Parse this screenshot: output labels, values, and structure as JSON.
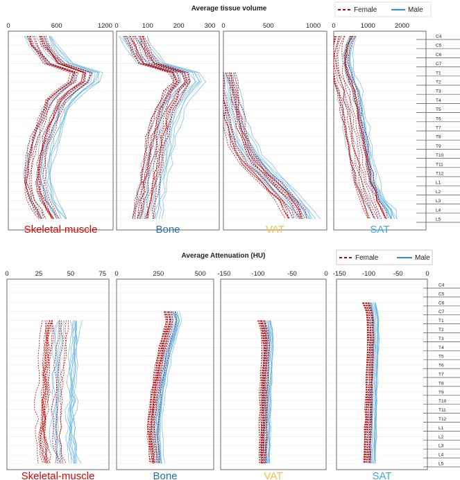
{
  "legend": {
    "female": "Female",
    "male": "Male"
  },
  "colors": {
    "female": "#c00000",
    "male": "#5aaee0",
    "muscle": "#e00000",
    "bone": "#1f6fb2",
    "vat": "#f0c040",
    "sat": "#3ba9e0"
  },
  "vertebrae": [
    "C4",
    "C5",
    "C6",
    "C7",
    "T1",
    "T2",
    "T3",
    "T4",
    "T5",
    "T6",
    "T7",
    "T8",
    "T9",
    "T10",
    "T11",
    "T12",
    "L1",
    "L2",
    "L3",
    "L4",
    "L5"
  ],
  "chart_data": [
    {
      "type": "line",
      "title": "Average tissue volume",
      "panels": [
        {
          "label": "Skeletal-muscle",
          "xlim": [
            0,
            1300
          ],
          "ticks": [
            "0",
            "600",
            "1200"
          ],
          "tick_values": [
            0,
            600,
            1200
          ],
          "female_profile": [
            350,
            400,
            480,
            580,
            900,
            880,
            720,
            600,
            540,
            500,
            460,
            420,
            380,
            360,
            340,
            330,
            320,
            340,
            380,
            440,
            500
          ],
          "female_spread": 140,
          "male_profile": [
            380,
            440,
            520,
            640,
            980,
            960,
            800,
            680,
            600,
            560,
            510,
            470,
            430,
            400,
            380,
            370,
            370,
            390,
            430,
            500,
            570
          ],
          "male_spread": 170
        },
        {
          "label": "Bone",
          "xlim": [
            0,
            330
          ],
          "ticks": [
            "0",
            "100",
            "200",
            "300"
          ],
          "tick_values": [
            0,
            100,
            200,
            300
          ],
          "female_profile": [
            55,
            65,
            80,
            100,
            195,
            205,
            180,
            165,
            150,
            140,
            135,
            125,
            120,
            115,
            110,
            105,
            100,
            95,
            90,
            85,
            80
          ],
          "female_spread": 40,
          "male_profile": [
            60,
            72,
            90,
            115,
            225,
            240,
            210,
            190,
            175,
            165,
            158,
            150,
            145,
            138,
            132,
            127,
            122,
            117,
            112,
            107,
            100
          ],
          "male_spread": 50
        },
        {
          "label": "VAT",
          "xlim": [
            0,
            1150
          ],
          "ticks": [
            "0",
            "500",
            "1000"
          ],
          "tick_values": [
            0,
            500,
            1000
          ],
          "female_profile": [
            null,
            null,
            null,
            null,
            0,
            20,
            40,
            60,
            80,
            100,
            120,
            150,
            180,
            230,
            300,
            400,
            500,
            600,
            700,
            760,
            800
          ],
          "female_spread": 130,
          "male_profile": [
            null,
            null,
            null,
            null,
            0,
            25,
            50,
            75,
            100,
            130,
            160,
            200,
            250,
            310,
            390,
            480,
            580,
            680,
            780,
            860,
            920
          ],
          "male_spread": 150
        },
        {
          "label": "SAT",
          "xlim": [
            0,
            2700
          ],
          "ticks": [
            "0",
            "1000",
            "2000"
          ],
          "tick_values": [
            0,
            1000,
            2000
          ],
          "female_profile": [
            300,
            200,
            150,
            150,
            200,
            300,
            400,
            450,
            500,
            550,
            600,
            650,
            700,
            750,
            800,
            850,
            900,
            1000,
            1100,
            1200,
            1300
          ],
          "female_spread": 300,
          "male_profile": [
            350,
            250,
            200,
            200,
            250,
            350,
            450,
            500,
            550,
            600,
            650,
            700,
            750,
            800,
            850,
            900,
            950,
            1050,
            1200,
            1400,
            1500
          ],
          "male_spread": 380
        }
      ]
    },
    {
      "type": "line",
      "title": "Average Attenuation (HU)",
      "panels": [
        {
          "label": "Skeletal-muscle",
          "xlim": [
            0,
            80
          ],
          "ticks": [
            "0",
            "25",
            "50",
            "75"
          ],
          "tick_values": [
            0,
            25,
            50,
            75
          ],
          "female_profile": [
            null,
            null,
            null,
            null,
            38,
            37,
            36,
            36,
            35,
            35,
            34,
            34,
            34,
            33,
            33,
            33,
            32,
            32,
            33,
            34,
            35
          ],
          "female_spread": 10,
          "male_profile": [
            null,
            null,
            null,
            null,
            48,
            47,
            47,
            46,
            46,
            46,
            45,
            45,
            45,
            45,
            44,
            44,
            44,
            44,
            45,
            46,
            47
          ],
          "male_spread": 10
        },
        {
          "label": "Bone",
          "xlim": [
            0,
            580
          ],
          "ticks": [
            "0",
            "250",
            "500"
          ],
          "tick_values": [
            0,
            250,
            500
          ],
          "female_profile": [
            null,
            null,
            null,
            320,
            330,
            320,
            300,
            290,
            280,
            270,
            260,
            250,
            240,
            235,
            230,
            225,
            220,
            220,
            225,
            230,
            235
          ],
          "female_spread": 35,
          "male_profile": [
            null,
            null,
            null,
            340,
            360,
            345,
            330,
            315,
            300,
            290,
            280,
            270,
            262,
            255,
            250,
            245,
            242,
            242,
            245,
            250,
            255
          ],
          "male_spread": 35
        },
        {
          "label": "VAT",
          "xlim": [
            -155,
            0
          ],
          "ticks": [
            "-150",
            "-100",
            "-50",
            "0"
          ],
          "tick_values": [
            -150,
            -100,
            -50,
            0
          ],
          "female_profile": [
            null,
            null,
            null,
            null,
            -95,
            -92,
            -90,
            -89,
            -90,
            -90,
            -91,
            -91,
            -92,
            -92,
            -92,
            -93,
            -93,
            -93,
            -93,
            -93,
            -93
          ],
          "female_spread": 7,
          "male_profile": [
            null,
            null,
            null,
            null,
            -88,
            -86,
            -85,
            -85,
            -86,
            -86,
            -87,
            -87,
            -88,
            -88,
            -88,
            -89,
            -89,
            -89,
            -89,
            -90,
            -90
          ],
          "male_spread": 7
        },
        {
          "label": "SAT",
          "xlim": [
            -155,
            0
          ],
          "ticks": [
            "-150",
            "-100",
            "-50",
            "0"
          ],
          "tick_values": [
            -150,
            -100,
            -50,
            0
          ],
          "female_profile": [
            null,
            null,
            -105,
            -100,
            -98,
            -98,
            -97,
            -98,
            -98,
            -99,
            -99,
            -100,
            -100,
            -100,
            -101,
            -101,
            -102,
            -102,
            -103,
            -103,
            -104
          ],
          "female_spread": 6,
          "male_profile": [
            null,
            null,
            -95,
            -92,
            -90,
            -90,
            -90,
            -90,
            -91,
            -91,
            -92,
            -92,
            -93,
            -93,
            -93,
            -94,
            -94,
            -94,
            -95,
            -95,
            -95
          ],
          "male_spread": 7
        }
      ]
    }
  ]
}
